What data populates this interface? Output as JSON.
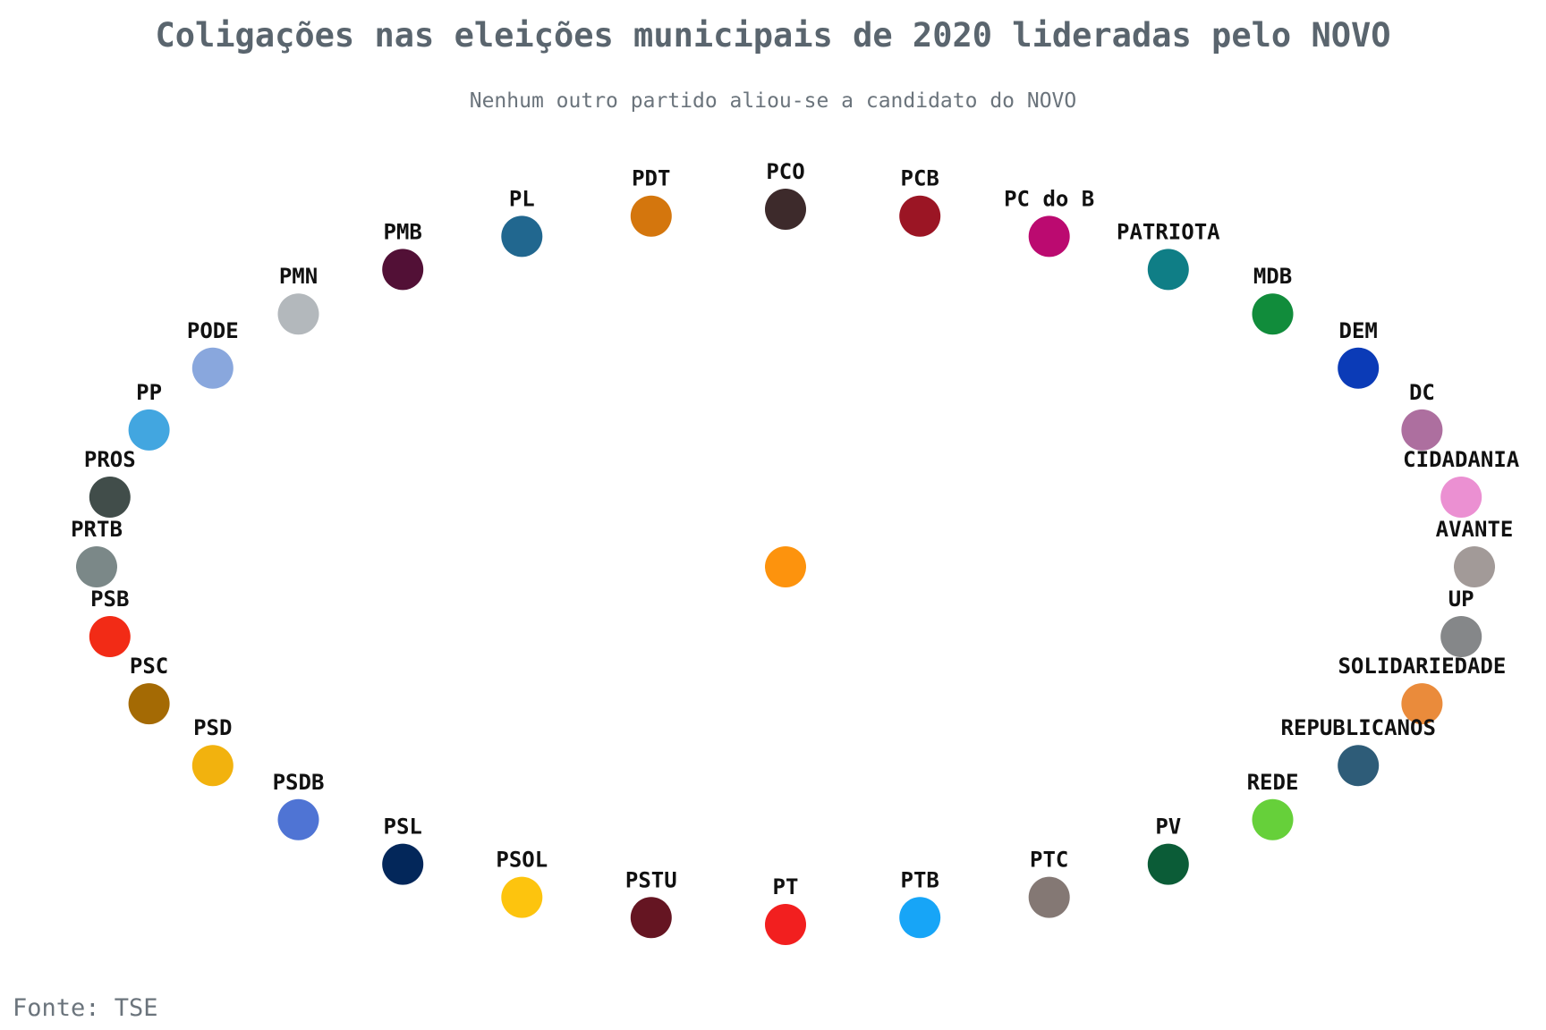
{
  "title": "Coligações nas eleições municipais de 2020 lideradas pelo NOVO",
  "subtitle": "Nenhum outro partido aliou-se a candidato do NOVO",
  "source": "Fonte: TSE",
  "center_node": {
    "color": "#fd930d"
  },
  "parties": [
    {
      "name": "PCO",
      "color": "#3d2a2b"
    },
    {
      "name": "PCB",
      "color": "#9b1524"
    },
    {
      "name": "PC do B",
      "color": "#bb0a70"
    },
    {
      "name": "PATRIOTA",
      "color": "#0f7e86"
    },
    {
      "name": "MDB",
      "color": "#118c3b"
    },
    {
      "name": "DEM",
      "color": "#0b3bb7"
    },
    {
      "name": "DC",
      "color": "#ad6f9f"
    },
    {
      "name": "CIDADANIA",
      "color": "#eb90d2"
    },
    {
      "name": "AVANTE",
      "color": "#a29a98"
    },
    {
      "name": "UP",
      "color": "#858789"
    },
    {
      "name": "SOLIDARIEDADE",
      "color": "#ea8b3b"
    },
    {
      "name": "REPUBLICANOS",
      "color": "#2e5c78"
    },
    {
      "name": "REDE",
      "color": "#66d03a"
    },
    {
      "name": "PV",
      "color": "#0b5c37"
    },
    {
      "name": "PTC",
      "color": "#847874"
    },
    {
      "name": "PTB",
      "color": "#17a5f7"
    },
    {
      "name": "PT",
      "color": "#f21f1f"
    },
    {
      "name": "PSTU",
      "color": "#651522"
    },
    {
      "name": "PSOL",
      "color": "#fdc40e"
    },
    {
      "name": "PSL",
      "color": "#03275a"
    },
    {
      "name": "PSDB",
      "color": "#4f74d4"
    },
    {
      "name": "PSD",
      "color": "#f2b20e"
    },
    {
      "name": "PSC",
      "color": "#a46a04"
    },
    {
      "name": "PSB",
      "color": "#f22b16"
    },
    {
      "name": "PRTB",
      "color": "#7b8888"
    },
    {
      "name": "PROS",
      "color": "#414d4a"
    },
    {
      "name": "PP",
      "color": "#42a6e0"
    },
    {
      "name": "PODE",
      "color": "#89a7dd"
    },
    {
      "name": "PMN",
      "color": "#b3b8bc"
    },
    {
      "name": "PMB",
      "color": "#521036"
    },
    {
      "name": "PL",
      "color": "#21678f"
    },
    {
      "name": "PDT",
      "color": "#d4760d"
    }
  ]
}
